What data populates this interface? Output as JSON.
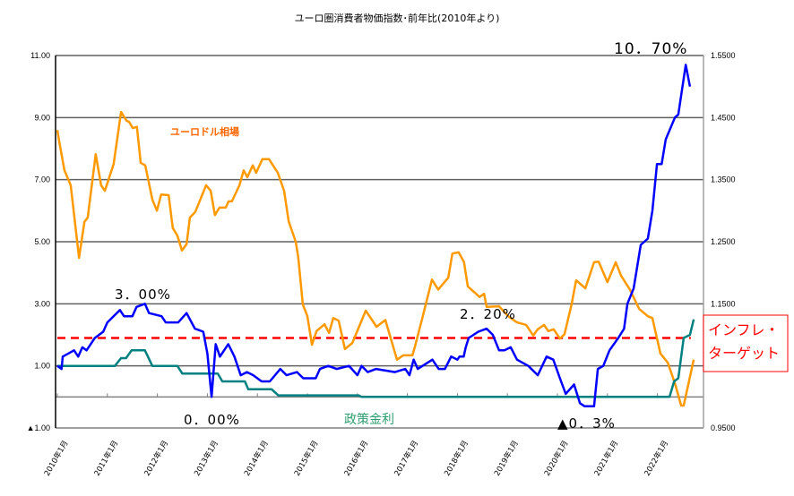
{
  "chart_data": {
    "type": "line",
    "title": "ユーロ圏消費者物価指数･前年比(2010年より)",
    "x_unit": "months since 2010年1月",
    "x_tick_labels": [
      "2010年1月",
      "2011年1月",
      "2012年1月",
      "2013年1月",
      "2014年1月",
      "2015年1月",
      "2016年1月",
      "2017年1月",
      "2018年1月",
      "2019年1月",
      "2020年1月",
      "2021年1月",
      "2022年1月"
    ],
    "left_axis": {
      "ylim": [
        -1,
        11
      ],
      "ticks": [
        11,
        9,
        7,
        5,
        3,
        1,
        -1
      ],
      "tick_labels": [
        "11.00",
        "9.00",
        "7.00",
        "5.00",
        "3.00",
        "1.00",
        "▲1.00"
      ]
    },
    "right_axis": {
      "ylim": [
        0.95,
        1.55
      ],
      "ticks": [
        1.55,
        1.45,
        1.35,
        1.25,
        1.15,
        1.05,
        0.95
      ],
      "tick_labels": [
        "1.5500",
        "1.4500",
        "1.3500",
        "1.2500",
        "1.1500",
        "1.0500",
        "0.9500"
      ]
    },
    "grid": true,
    "series": [
      {
        "name": "消費者物価指数 前年比",
        "axis": "left",
        "color": "#0000ff",
        "points": [
          [
            0,
            1.0
          ],
          [
            1,
            0.9
          ],
          [
            1.3,
            1.3
          ],
          [
            4,
            1.5
          ],
          [
            5,
            1.3
          ],
          [
            6,
            1.6
          ],
          [
            7,
            1.5
          ],
          [
            9,
            1.9
          ],
          [
            11,
            2.1
          ],
          [
            12,
            2.4
          ],
          [
            15,
            2.8
          ],
          [
            16,
            2.6
          ],
          [
            18,
            2.6
          ],
          [
            19,
            2.9
          ],
          [
            21,
            3.0
          ],
          [
            22,
            2.7
          ],
          [
            25,
            2.6
          ],
          [
            26,
            2.4
          ],
          [
            29,
            2.4
          ],
          [
            31,
            2.7
          ],
          [
            33,
            2.2
          ],
          [
            35,
            2.1
          ],
          [
            36,
            1.4
          ],
          [
            37,
            0.0
          ],
          [
            38,
            1.7
          ],
          [
            39,
            1.3
          ],
          [
            41,
            1.7
          ],
          [
            42.5,
            1.3
          ],
          [
            44,
            0.7
          ],
          [
            45.5,
            0.8
          ],
          [
            47,
            0.7
          ],
          [
            49,
            0.5
          ],
          [
            51,
            0.5
          ],
          [
            53.5,
            0.9
          ],
          [
            55,
            0.7
          ],
          [
            57.5,
            0.8
          ],
          [
            59,
            0.6
          ],
          [
            62,
            0.6
          ],
          [
            63,
            0.9
          ],
          [
            65,
            1.0
          ],
          [
            67,
            0.9
          ],
          [
            70,
            1.0
          ],
          [
            72,
            0.7
          ],
          [
            73,
            1.0
          ],
          [
            74.5,
            0.8
          ],
          [
            76.5,
            0.9
          ],
          [
            81,
            0.8
          ],
          [
            83.5,
            0.9
          ],
          [
            84.5,
            0.7
          ],
          [
            85.5,
            1.2
          ],
          [
            86.5,
            0.9
          ],
          [
            90,
            1.2
          ],
          [
            91.5,
            0.9
          ],
          [
            93,
            0.9
          ],
          [
            94.5,
            1.3
          ],
          [
            96,
            1.2
          ],
          [
            96.5,
            1.3
          ],
          [
            97.5,
            1.3
          ],
          [
            98,
            1.6
          ],
          [
            98.7,
            1.9
          ],
          [
            101,
            2.1
          ],
          [
            103,
            2.2
          ],
          [
            104.5,
            2.0
          ],
          [
            106,
            1.5
          ],
          [
            107.3,
            1.5
          ],
          [
            108.8,
            1.6
          ],
          [
            110.3,
            1.2
          ],
          [
            113,
            1.0
          ],
          [
            115.3,
            0.7
          ],
          [
            117.4,
            1.3
          ],
          [
            119,
            1.2
          ],
          [
            120.6,
            0.6
          ],
          [
            122,
            0.1
          ],
          [
            124,
            0.4
          ],
          [
            125.4,
            -0.2
          ],
          [
            126.5,
            -0.3
          ],
          [
            128.8,
            -0.3
          ],
          [
            129.7,
            0.9
          ],
          [
            131,
            1.0
          ],
          [
            132.5,
            1.5
          ],
          [
            134.6,
            1.9
          ],
          [
            136,
            2.2
          ],
          [
            136.8,
            3.0
          ],
          [
            138.3,
            3.5
          ],
          [
            140,
            4.9
          ],
          [
            141.7,
            5.1
          ],
          [
            142.8,
            6.0
          ],
          [
            143.9,
            7.5
          ],
          [
            145,
            7.5
          ],
          [
            146,
            8.3
          ],
          [
            148.2,
            9.0
          ],
          [
            149,
            9.1
          ],
          [
            150.8,
            10.7
          ],
          [
            151.8,
            10.0
          ]
        ]
      },
      {
        "name": "ユーロドル相場",
        "axis": "right",
        "color": "#ff9900",
        "points": [
          [
            0,
            1.43
          ],
          [
            0.4,
            1.413
          ],
          [
            1.7,
            1.365
          ],
          [
            3.2,
            1.341
          ],
          [
            5.2,
            1.224
          ],
          [
            6.5,
            1.282
          ],
          [
            7.3,
            1.289
          ],
          [
            9.2,
            1.391
          ],
          [
            10.5,
            1.341
          ],
          [
            11.4,
            1.332
          ],
          [
            13.5,
            1.375
          ],
          [
            15.3,
            1.459
          ],
          [
            16.6,
            1.445
          ],
          [
            17.2,
            1.443
          ],
          [
            18.1,
            1.433
          ],
          [
            19.1,
            1.435
          ],
          [
            20,
            1.377
          ],
          [
            21.1,
            1.373
          ],
          [
            22.8,
            1.318
          ],
          [
            23.9,
            1.3
          ],
          [
            24.9,
            1.326
          ],
          [
            26.7,
            1.325
          ],
          [
            27.7,
            1.272
          ],
          [
            28.8,
            1.26
          ],
          [
            29.9,
            1.236
          ],
          [
            31,
            1.246
          ],
          [
            31.8,
            1.289
          ],
          [
            33.1,
            1.298
          ],
          [
            35.7,
            1.341
          ],
          [
            36.8,
            1.332
          ],
          [
            37.8,
            1.293
          ],
          [
            38.9,
            1.305
          ],
          [
            40.4,
            1.305
          ],
          [
            41.1,
            1.315
          ],
          [
            41.9,
            1.315
          ],
          [
            43.7,
            1.341
          ],
          [
            44.7,
            1.365
          ],
          [
            45.6,
            1.354
          ],
          [
            46.9,
            1.373
          ],
          [
            47.7,
            1.361
          ],
          [
            49.2,
            1.383
          ],
          [
            50.8,
            1.383
          ],
          [
            52.9,
            1.361
          ],
          [
            54.4,
            1.332
          ],
          [
            55.5,
            1.283
          ],
          [
            57.2,
            1.25
          ],
          [
            57.8,
            1.225
          ],
          [
            58.9,
            1.149
          ],
          [
            60,
            1.13
          ],
          [
            61.1,
            1.084
          ],
          [
            62.2,
            1.106
          ],
          [
            64.1,
            1.117
          ],
          [
            65.2,
            1.103
          ],
          [
            66.2,
            1.127
          ],
          [
            67.5,
            1.123
          ],
          [
            69,
            1.077
          ],
          [
            70.8,
            1.087
          ],
          [
            74,
            1.139
          ],
          [
            76.6,
            1.113
          ],
          [
            78.7,
            1.124
          ],
          [
            81.5,
            1.06
          ],
          [
            83,
            1.067
          ],
          [
            85.2,
            1.067
          ],
          [
            85.8,
            1.081
          ],
          [
            87.7,
            1.13
          ],
          [
            89.9,
            1.189
          ],
          [
            91.4,
            1.173
          ],
          [
            93.8,
            1.192
          ],
          [
            94.8,
            1.231
          ],
          [
            96.3,
            1.233
          ],
          [
            97.6,
            1.217
          ],
          [
            98.5,
            1.178
          ],
          [
            100.2,
            1.168
          ],
          [
            101.3,
            1.161
          ],
          [
            102.4,
            1.166
          ],
          [
            103,
            1.145
          ],
          [
            106,
            1.146
          ],
          [
            108.2,
            1.13
          ],
          [
            110.3,
            1.12
          ],
          [
            112.5,
            1.116
          ],
          [
            114.2,
            1.099
          ],
          [
            115.3,
            1.109
          ],
          [
            116.8,
            1.116
          ],
          [
            117.8,
            1.106
          ],
          [
            119.1,
            1.109
          ],
          [
            120.6,
            1.094
          ],
          [
            121.7,
            1.101
          ],
          [
            123.4,
            1.149
          ],
          [
            124.5,
            1.188
          ],
          [
            126.7,
            1.175
          ],
          [
            128.8,
            1.217
          ],
          [
            129.9,
            1.218
          ],
          [
            132,
            1.185
          ],
          [
            134,
            1.217
          ],
          [
            135.3,
            1.195
          ],
          [
            137.4,
            1.173
          ],
          [
            139.6,
            1.142
          ],
          [
            141.7,
            1.13
          ],
          [
            142.8,
            1.127
          ],
          [
            144.7,
            1.07
          ],
          [
            146.5,
            1.055
          ],
          [
            148.2,
            1.022
          ],
          [
            149.7,
            0.986
          ],
          [
            150.3,
            0.986
          ],
          [
            152.7,
            1.06
          ]
        ]
      },
      {
        "name": "政策金利",
        "axis": "left",
        "color": "#008080",
        "points": [
          [
            0,
            1.0
          ],
          [
            13.8,
            1.0
          ],
          [
            15.3,
            1.25
          ],
          [
            16.5,
            1.25
          ],
          [
            17.8,
            1.5
          ],
          [
            21,
            1.5
          ],
          [
            22.8,
            1.0
          ],
          [
            28.8,
            1.0
          ],
          [
            30,
            0.75
          ],
          [
            38.5,
            0.75
          ],
          [
            39.6,
            0.5
          ],
          [
            45,
            0.5
          ],
          [
            45.8,
            0.25
          ],
          [
            51.4,
            0.25
          ],
          [
            53,
            0.05
          ],
          [
            72.3,
            0.05
          ],
          [
            73,
            0.0
          ],
          [
            146.9,
            0.0
          ],
          [
            148,
            0.5
          ],
          [
            149,
            0.6
          ],
          [
            150.3,
            1.9
          ],
          [
            151.8,
            2.0
          ],
          [
            152.7,
            2.5
          ]
        ]
      },
      {
        "name": "インフレ・ターゲット",
        "axis": "left",
        "color": "#ff0000",
        "style": "dashed",
        "points": [
          [
            0,
            1.9
          ],
          [
            152,
            1.9
          ]
        ]
      }
    ],
    "annotations": {
      "cpi_peak": "10．70%",
      "cpi_2011": "3．00%",
      "cpi_2018": "2．20%",
      "rate_zero": "0．00%",
      "cpi_low": "▲0．3%",
      "policy_rate_label": "政策金利",
      "eurusd_label": "ユーロドル相場",
      "inflation_target_label_line1": "インフレ・",
      "inflation_target_label_line2": "ターゲット"
    }
  }
}
